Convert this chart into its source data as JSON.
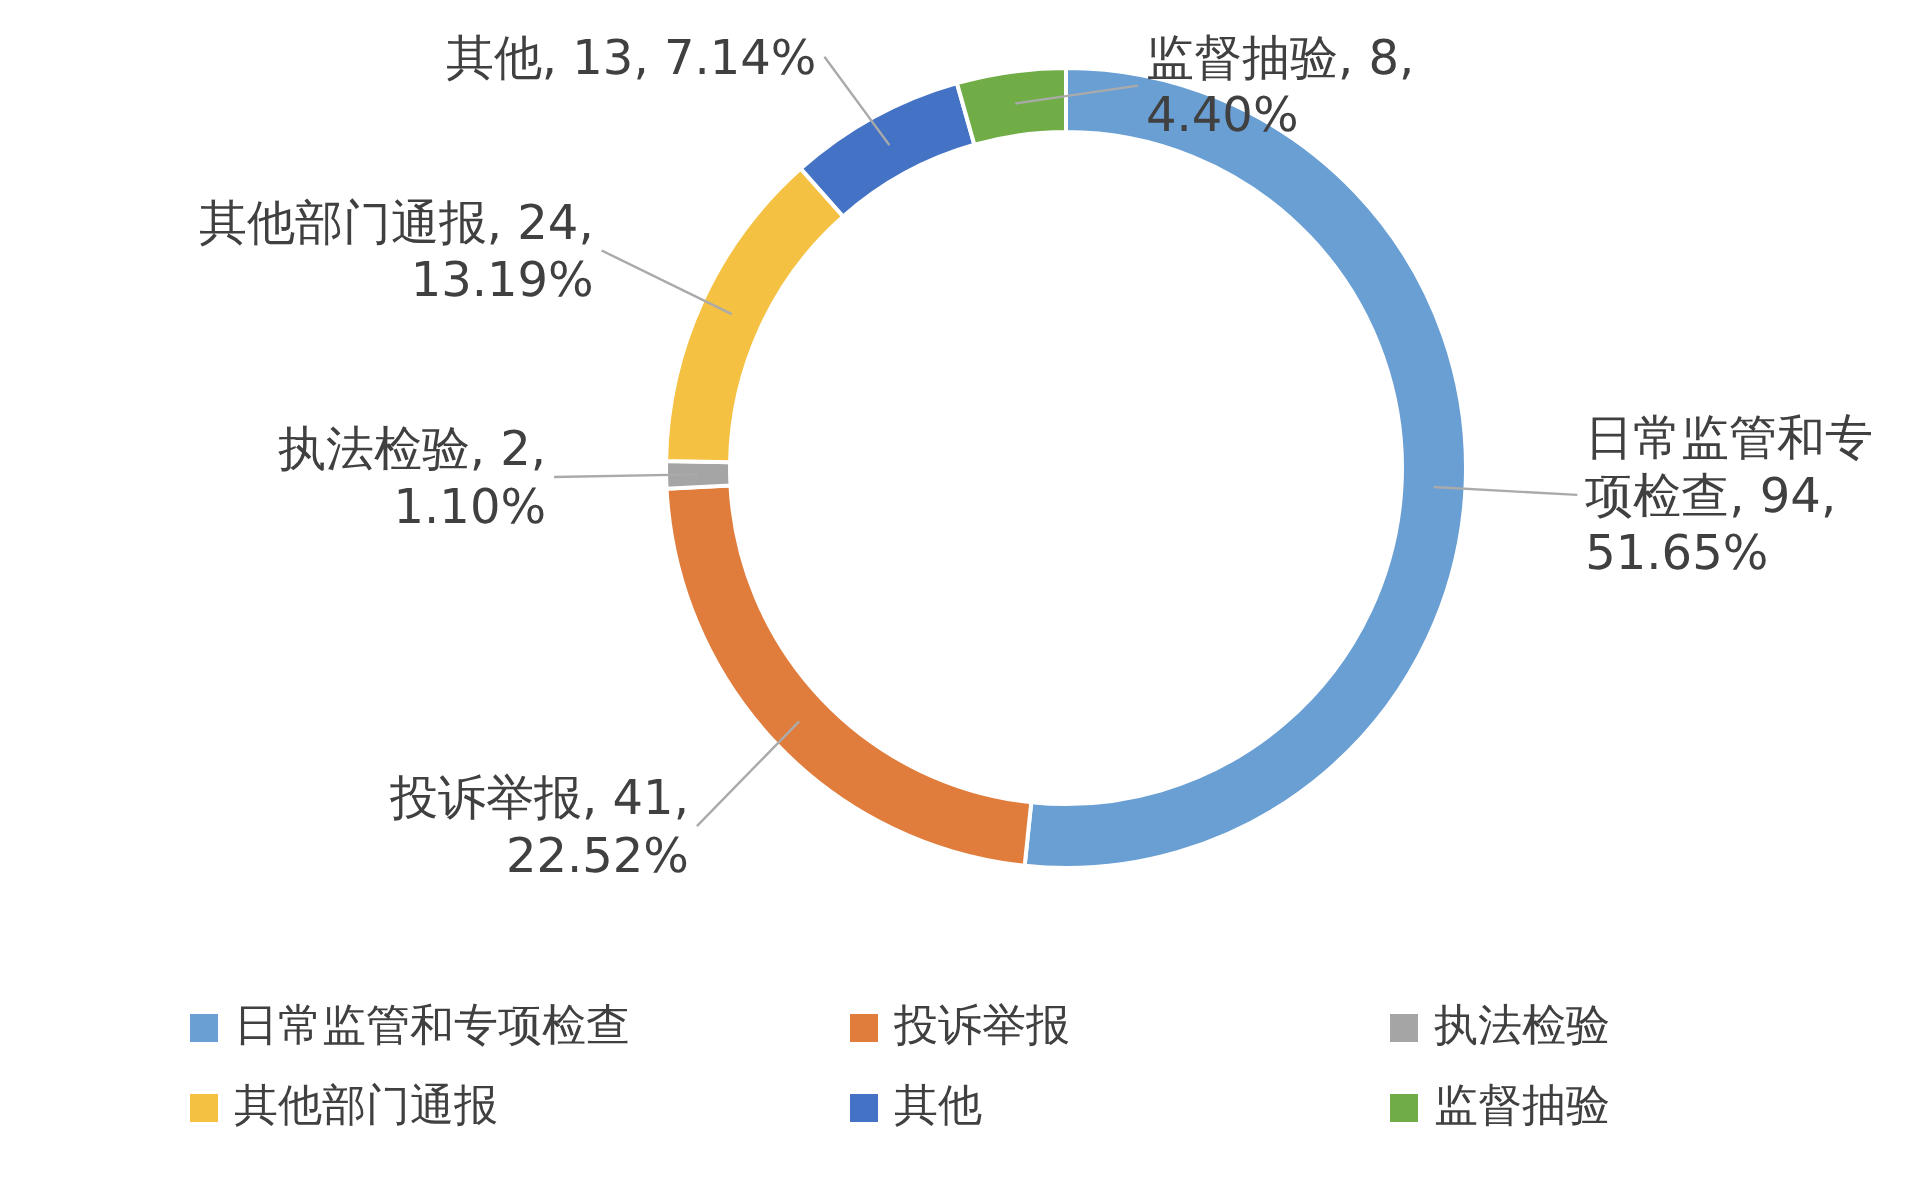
{
  "chart_data": {
    "type": "donut",
    "categories": [
      "日常监管和专项检查",
      "投诉举报",
      "执法检验",
      "其他部门通报",
      "其他",
      "监督抽验"
    ],
    "values": [
      94,
      41,
      2,
      24,
      13,
      8
    ],
    "colors": [
      "#6a9fd4",
      "#e07d3c",
      "#a5a5a5",
      "#f5c142",
      "#4472c4",
      "#70ad47"
    ],
    "value_labels": [
      "日常监管和专项检查, 94, 51.65%",
      "投诉举报, 41, 22.52%",
      "执法检验, 2, 1.10%",
      "其他部门通报, 24, 13.19%",
      "其他, 13, 7.14%",
      "监督抽验, 8, 4.40%"
    ],
    "legend": "bottom"
  }
}
